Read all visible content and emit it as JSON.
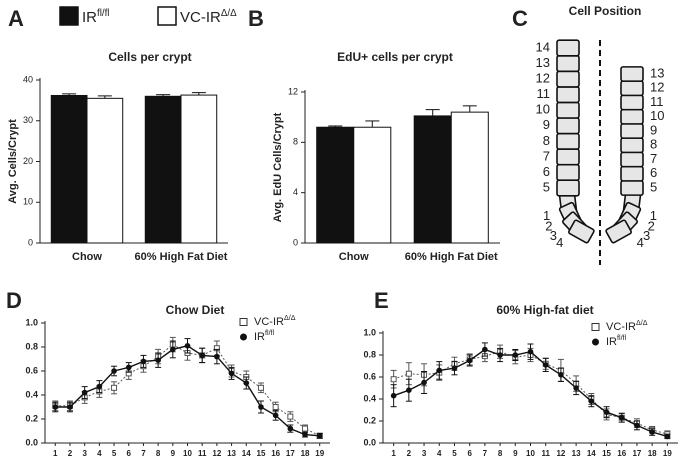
{
  "chart_data": [
    {
      "panel": "A",
      "type": "bar",
      "title": "Cells per crypt",
      "ylabel": "Avg. Cells/Crypt",
      "categories": [
        "Chow",
        "60% High Fat Diet"
      ],
      "series": [
        {
          "name": "IR",
          "sup": "fl/fl",
          "color": "#111111",
          "values": [
            36.2,
            36.0
          ],
          "errors": [
            0.4,
            0.4
          ]
        },
        {
          "name": "VC-IR",
          "sup": "Δ/Δ",
          "color": "#ffffff",
          "values": [
            35.5,
            36.3
          ],
          "errors": [
            0.6,
            0.6
          ]
        }
      ],
      "ylim": [
        0,
        40
      ],
      "yticks": [
        0,
        10,
        20,
        30,
        40
      ]
    },
    {
      "panel": "B",
      "type": "bar",
      "title": "EdU+ cells per crypt",
      "ylabel": "Avg. EdU Cells/Crypt",
      "categories": [
        "Chow",
        "60% High Fat Diet"
      ],
      "series": [
        {
          "name": "IR",
          "sup": "fl/fl",
          "color": "#111111",
          "values": [
            9.2,
            10.1
          ],
          "errors": [
            0.1,
            0.5
          ]
        },
        {
          "name": "VC-IR",
          "sup": "Δ/Δ",
          "color": "#ffffff",
          "values": [
            9.2,
            10.4
          ],
          "errors": [
            0.5,
            0.5
          ]
        }
      ],
      "ylim": [
        0,
        12
      ],
      "yticks": [
        0,
        4,
        8,
        12
      ]
    },
    {
      "panel": "C",
      "type": "diagram",
      "title": "Cell Position",
      "positions_left": [
        1,
        2,
        3,
        4,
        5,
        6,
        7,
        8,
        9,
        10,
        11,
        12,
        13,
        14
      ],
      "positions_right": [
        1,
        2,
        3,
        4,
        5,
        6,
        7,
        8,
        9,
        10,
        11,
        12,
        13
      ]
    },
    {
      "panel": "D",
      "type": "line",
      "title": "Chow Diet",
      "x": [
        1,
        2,
        3,
        4,
        5,
        6,
        7,
        8,
        9,
        10,
        11,
        12,
        13,
        14,
        15,
        16,
        17,
        18,
        19
      ],
      "xticks": [
        1,
        2,
        3,
        4,
        5,
        6,
        7,
        8,
        9,
        10,
        11,
        12,
        13,
        14,
        15,
        16,
        17,
        18,
        19
      ],
      "xlim": [
        0.3,
        19.7
      ],
      "ylim": [
        0,
        1
      ],
      "yticks": [
        {
          "value": 0,
          "label": "0.0"
        },
        0.2,
        0.4,
        0.6,
        0.8,
        {
          "value": 1,
          "label": "1.0"
        }
      ],
      "series": [
        {
          "name": "VC-IR",
          "sup": "Δ/Δ",
          "color": "#555555",
          "marker": "square",
          "values": [
            0.31,
            0.31,
            0.38,
            0.43,
            0.46,
            0.58,
            0.64,
            0.72,
            0.82,
            0.75,
            0.73,
            0.79,
            0.6,
            0.55,
            0.46,
            0.3,
            0.22,
            0.12,
            0.06
          ],
          "errors": [
            0.04,
            0.04,
            0.05,
            0.05,
            0.05,
            0.05,
            0.05,
            0.06,
            0.06,
            0.06,
            0.06,
            0.06,
            0.05,
            0.05,
            0.04,
            0.04,
            0.04,
            0.03,
            0.02
          ]
        },
        {
          "name": "IR",
          "sup": "fl/fl",
          "color": "#111111",
          "marker": "circle",
          "values": [
            0.3,
            0.3,
            0.42,
            0.47,
            0.6,
            0.63,
            0.68,
            0.69,
            0.78,
            0.81,
            0.73,
            0.72,
            0.58,
            0.5,
            0.3,
            0.23,
            0.12,
            0.07,
            0.06
          ],
          "errors": [
            0.04,
            0.04,
            0.05,
            0.05,
            0.04,
            0.04,
            0.05,
            0.06,
            0.07,
            0.06,
            0.06,
            0.06,
            0.05,
            0.05,
            0.05,
            0.04,
            0.03,
            0.02,
            0.02
          ]
        }
      ]
    },
    {
      "panel": "E",
      "type": "line",
      "title": "60% High-fat diet",
      "x": [
        1,
        2,
        3,
        4,
        5,
        6,
        7,
        8,
        9,
        10,
        11,
        12,
        13,
        14,
        15,
        16,
        17,
        18,
        19
      ],
      "xticks": [
        1,
        2,
        3,
        4,
        5,
        6,
        7,
        8,
        9,
        10,
        11,
        12,
        13,
        14,
        15,
        16,
        17,
        18,
        19
      ],
      "xlim": [
        0.3,
        19.7
      ],
      "ylim": [
        0,
        1
      ],
      "yticks": [
        {
          "value": 0,
          "label": "0.0"
        },
        0.2,
        0.4,
        0.6,
        0.8,
        {
          "value": 1,
          "label": "1.0"
        }
      ],
      "series": [
        {
          "name": "VC-IR",
          "sup": "Δ/Δ",
          "color": "#555555",
          "marker": "square",
          "values": [
            0.58,
            0.63,
            0.62,
            0.64,
            0.72,
            0.76,
            0.79,
            0.83,
            0.78,
            0.8,
            0.72,
            0.66,
            0.54,
            0.4,
            0.26,
            0.23,
            0.18,
            0.12,
            0.08
          ],
          "errors": [
            0.08,
            0.1,
            0.1,
            0.07,
            0.06,
            0.05,
            0.05,
            0.06,
            0.06,
            0.06,
            0.05,
            0.1,
            0.07,
            0.05,
            0.05,
            0.04,
            0.04,
            0.03,
            0.03
          ]
        },
        {
          "name": "IR",
          "sup": "fl/fl",
          "color": "#111111",
          "marker": "circle",
          "values": [
            0.43,
            0.48,
            0.55,
            0.66,
            0.68,
            0.75,
            0.85,
            0.8,
            0.8,
            0.83,
            0.71,
            0.62,
            0.5,
            0.38,
            0.28,
            0.23,
            0.16,
            0.1,
            0.06
          ],
          "errors": [
            0.1,
            0.1,
            0.1,
            0.08,
            0.06,
            0.05,
            0.06,
            0.06,
            0.05,
            0.07,
            0.06,
            0.06,
            0.06,
            0.05,
            0.05,
            0.04,
            0.04,
            0.03,
            0.02
          ]
        }
      ]
    }
  ]
}
